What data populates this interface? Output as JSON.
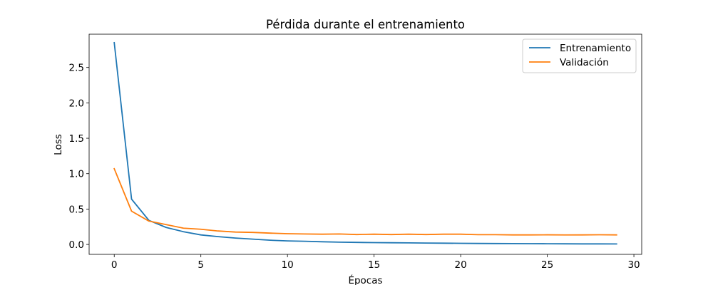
{
  "chart_data": {
    "type": "line",
    "title": "Pérdida durante el entrenamiento",
    "xlabel": "Épocas",
    "ylabel": "Loss",
    "xlim": [
      -1.45,
      30.45
    ],
    "ylim": [
      -0.14,
      2.97
    ],
    "grid": false,
    "legend_position": "top-right",
    "xticks": [
      0,
      5,
      10,
      15,
      20,
      25,
      30
    ],
    "xtick_labels": [
      "0",
      "5",
      "10",
      "15",
      "20",
      "25",
      "30"
    ],
    "yticks": [
      0.0,
      0.5,
      1.0,
      1.5,
      2.0,
      2.5
    ],
    "ytick_labels": [
      "0.0",
      "0.5",
      "1.0",
      "1.5",
      "2.0",
      "2.5"
    ],
    "x": [
      0,
      1,
      2,
      3,
      4,
      5,
      6,
      7,
      8,
      9,
      10,
      11,
      12,
      13,
      14,
      15,
      16,
      17,
      18,
      19,
      20,
      21,
      22,
      23,
      24,
      25,
      26,
      27,
      28,
      29
    ],
    "series": [
      {
        "name": "Entrenamiento",
        "color": "#1f77b4",
        "values": [
          2.85,
          0.64,
          0.34,
          0.24,
          0.18,
          0.135,
          0.11,
          0.09,
          0.075,
          0.06,
          0.05,
          0.045,
          0.038,
          0.032,
          0.029,
          0.026,
          0.024,
          0.022,
          0.02,
          0.018,
          0.016,
          0.014,
          0.013,
          0.012,
          0.011,
          0.01,
          0.009,
          0.008,
          0.008,
          0.007
        ]
      },
      {
        "name": "Validación",
        "color": "#ff7f0e",
        "values": [
          1.07,
          0.47,
          0.33,
          0.28,
          0.23,
          0.215,
          0.19,
          0.175,
          0.17,
          0.16,
          0.152,
          0.148,
          0.145,
          0.148,
          0.14,
          0.145,
          0.14,
          0.145,
          0.14,
          0.145,
          0.145,
          0.138,
          0.138,
          0.135,
          0.135,
          0.136,
          0.134,
          0.135,
          0.137,
          0.135
        ]
      }
    ]
  }
}
